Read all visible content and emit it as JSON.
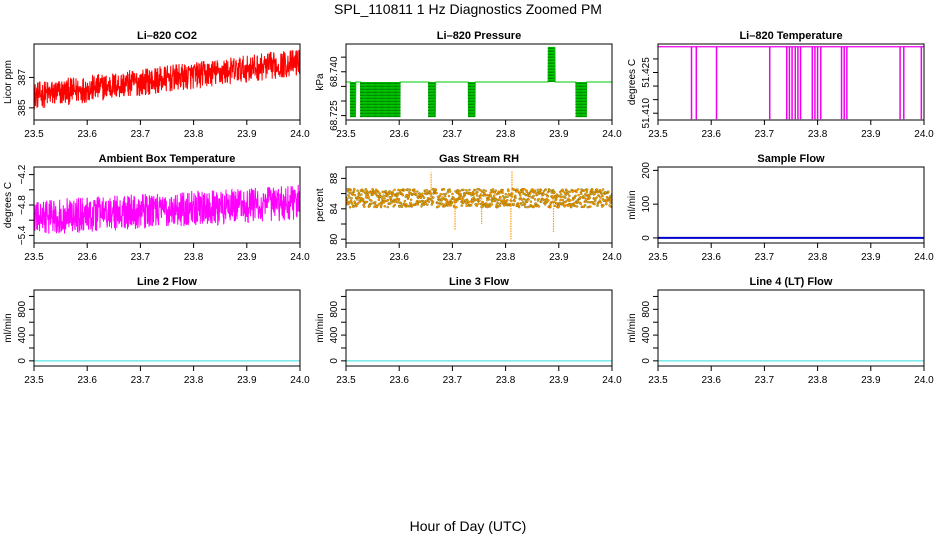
{
  "title": "SPL_110811  1 Hz Diagnostics Zoomed PM",
  "xlabel": "Hour of Day (UTC)",
  "chart_data": [
    {
      "type": "line",
      "title": "Li–820 CO2",
      "ylabel": "Licor ppm",
      "color": "#ff0000",
      "style": "noisy",
      "xlim": [
        23.5,
        24.0
      ],
      "ylim": [
        384.2,
        389.2
      ],
      "x_ticks": [
        23.5,
        23.6,
        23.7,
        23.8,
        23.9,
        24.0
      ],
      "x_tick_labels": [
        "23.5",
        "23.6",
        "23.7",
        "23.8",
        "23.9",
        "24.0"
      ],
      "y_ticks": [
        385,
        387
      ],
      "y_tick_labels": [
        "385",
        "387"
      ],
      "trend_start": 385.8,
      "trend_end": 388.0,
      "noise_amplitude": 0.9
    },
    {
      "type": "line",
      "title": "Li–820 Pressure",
      "ylabel": "kPa",
      "color": "#00cc00",
      "style": "steps",
      "xlim": [
        23.5,
        24.0
      ],
      "ylim": [
        68.7235,
        68.7495
      ],
      "x_ticks": [
        23.5,
        23.6,
        23.7,
        23.8,
        23.9,
        24.0
      ],
      "x_tick_labels": [
        "23.5",
        "23.6",
        "23.7",
        "23.8",
        "23.9",
        "24.0"
      ],
      "y_ticks": [
        68.725,
        68.73,
        68.735,
        68.74,
        68.745
      ],
      "y_tick_labels": [
        "68.725",
        "",
        "",
        "68.740",
        ""
      ],
      "base_value": 68.7365,
      "low_value": 68.7245,
      "high_value": 68.7485,
      "low_bursts": [
        [
          23.508,
          23.518
        ],
        [
          23.527,
          23.602
        ],
        [
          23.655,
          23.668
        ],
        [
          23.73,
          23.743
        ],
        [
          23.932,
          23.952
        ]
      ],
      "high_bursts": [
        [
          23.88,
          23.893
        ]
      ]
    },
    {
      "type": "line",
      "title": "Li–820 Temperature",
      "ylabel": "degrees C",
      "color": "#ee00ee",
      "style": "spikes",
      "xlim": [
        23.5,
        24.0
      ],
      "ylim": [
        51.4075,
        51.4355
      ],
      "x_ticks": [
        23.5,
        23.6,
        23.7,
        23.8,
        23.9,
        24.0
      ],
      "x_tick_labels": [
        "23.5",
        "23.6",
        "23.7",
        "23.8",
        "23.9",
        "24.0"
      ],
      "y_ticks": [
        51.41,
        51.415,
        51.42,
        51.425,
        51.43
      ],
      "y_tick_labels": [
        "51.410",
        "",
        "",
        "51.425",
        ""
      ],
      "base_value": 51.4345,
      "spike_value": 51.4078,
      "spikes": [
        23.563,
        23.572,
        23.61,
        23.71,
        23.742,
        23.747,
        23.752,
        23.758,
        23.763,
        23.768,
        23.79,
        23.795,
        23.8,
        23.806,
        23.845,
        23.85,
        23.855,
        23.955,
        23.962,
        23.995
      ]
    },
    {
      "type": "line",
      "title": "Ambient Box Temperature",
      "ylabel": "degrees C",
      "color": "#ff00ff",
      "style": "noisy",
      "xlim": [
        23.5,
        24.0
      ],
      "ylim": [
        -5.55,
        -4.05
      ],
      "x_ticks": [
        23.5,
        23.6,
        23.7,
        23.8,
        23.9,
        24.0
      ],
      "x_tick_labels": [
        "23.5",
        "23.6",
        "23.7",
        "23.8",
        "23.9",
        "24.0"
      ],
      "y_ticks": [
        -5.4,
        -5.1,
        -4.8,
        -4.5,
        -4.2
      ],
      "y_tick_labels": [
        "−5.4",
        "",
        "−4.8",
        "",
        "−4.2"
      ],
      "trend_start": -5.05,
      "trend_end": -4.75,
      "noise_amplitude": 0.35
    },
    {
      "type": "scatter",
      "title": "Gas Stream RH",
      "ylabel": "percent",
      "color": "#ff9900",
      "edge_color": "#666600",
      "style": "dots",
      "xlim": [
        23.5,
        24.0
      ],
      "ylim": [
        79.5,
        89.5
      ],
      "x_ticks": [
        23.5,
        23.6,
        23.7,
        23.8,
        23.9,
        24.0
      ],
      "x_tick_labels": [
        "23.5",
        "23.6",
        "23.7",
        "23.8",
        "23.9",
        "24.0"
      ],
      "y_ticks": [
        80,
        82,
        84,
        86,
        88
      ],
      "y_tick_labels": [
        "80",
        "",
        "84",
        "",
        "88"
      ],
      "base_value": 85.4,
      "noise_amplitude": 1.2,
      "outliers": [
        [
          23.705,
          81.2
        ],
        [
          23.755,
          82.0
        ],
        [
          23.81,
          80.0
        ],
        [
          23.89,
          80.8
        ],
        [
          23.66,
          88.8
        ],
        [
          23.812,
          89.0
        ]
      ]
    },
    {
      "type": "line",
      "title": "Sample Flow",
      "ylabel": "ml/min",
      "color": "#0000cc",
      "style": "flat",
      "line_width": 2,
      "xlim": [
        23.5,
        24.0
      ],
      "ylim": [
        -15,
        210
      ],
      "x_ticks": [
        23.5,
        23.6,
        23.7,
        23.8,
        23.9,
        24.0
      ],
      "x_tick_labels": [
        "23.5",
        "23.6",
        "23.7",
        "23.8",
        "23.9",
        "24.0"
      ],
      "y_ticks": [
        0,
        100,
        200
      ],
      "y_tick_labels": [
        "0",
        "100",
        "200"
      ],
      "x": [
        23.5,
        24.0
      ],
      "y": [
        0,
        0
      ]
    },
    {
      "type": "line",
      "title": "Line 2 Flow",
      "ylabel": "ml/min",
      "color": "#33dddd",
      "style": "flat",
      "line_width": 1,
      "xlim": [
        23.5,
        24.0
      ],
      "ylim": [
        -80,
        1100
      ],
      "x_ticks": [
        23.5,
        23.6,
        23.7,
        23.8,
        23.9,
        24.0
      ],
      "x_tick_labels": [
        "23.5",
        "23.6",
        "23.7",
        "23.8",
        "23.9",
        "24.0"
      ],
      "y_ticks": [
        0,
        200,
        400,
        600,
        800,
        1000
      ],
      "y_tick_labels": [
        "0",
        "",
        "400",
        "",
        "800",
        ""
      ],
      "x": [
        23.5,
        24.0
      ],
      "y": [
        0,
        0
      ]
    },
    {
      "type": "line",
      "title": "Line 3 Flow",
      "ylabel": "ml/min",
      "color": "#33dddd",
      "style": "flat",
      "line_width": 1,
      "xlim": [
        23.5,
        24.0
      ],
      "ylim": [
        -80,
        1100
      ],
      "x_ticks": [
        23.5,
        23.6,
        23.7,
        23.8,
        23.9,
        24.0
      ],
      "x_tick_labels": [
        "23.5",
        "23.6",
        "23.7",
        "23.8",
        "23.9",
        "24.0"
      ],
      "y_ticks": [
        0,
        200,
        400,
        600,
        800,
        1000
      ],
      "y_tick_labels": [
        "0",
        "",
        "400",
        "",
        "800",
        ""
      ],
      "x": [
        23.5,
        24.0
      ],
      "y": [
        0,
        0
      ]
    },
    {
      "type": "line",
      "title": "Line 4 (LT) Flow",
      "ylabel": "ml/min",
      "color": "#33dddd",
      "style": "flat",
      "line_width": 1,
      "xlim": [
        23.5,
        24.0
      ],
      "ylim": [
        -80,
        1100
      ],
      "x_ticks": [
        23.5,
        23.6,
        23.7,
        23.8,
        23.9,
        24.0
      ],
      "x_tick_labels": [
        "23.5",
        "23.6",
        "23.7",
        "23.8",
        "23.9",
        "24.0"
      ],
      "y_ticks": [
        0,
        200,
        400,
        600,
        800,
        1000
      ],
      "y_tick_labels": [
        "0",
        "",
        "400",
        "",
        "800",
        ""
      ],
      "x": [
        23.5,
        24.0
      ],
      "y": [
        0,
        0
      ]
    }
  ]
}
